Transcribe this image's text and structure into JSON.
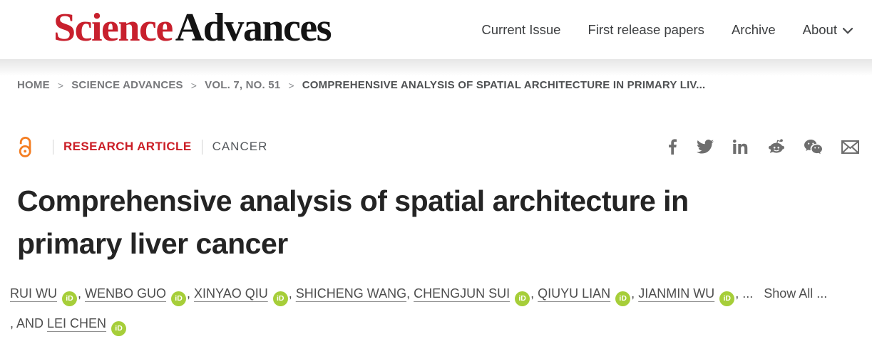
{
  "header": {
    "logo": {
      "science": "Science",
      "advances": "Advances"
    },
    "nav": {
      "items": [
        {
          "label": "Current Issue",
          "dropdown": false
        },
        {
          "label": "First release papers",
          "dropdown": false
        },
        {
          "label": "Archive",
          "dropdown": false
        },
        {
          "label": "About",
          "dropdown": true
        }
      ]
    }
  },
  "breadcrumb": {
    "separator": ">",
    "items": [
      "HOME",
      "SCIENCE ADVANCES",
      "VOL. 7, NO. 51"
    ],
    "current": "COMPREHENSIVE ANALYSIS OF SPATIAL ARCHITECTURE IN PRIMARY LIV..."
  },
  "article_meta": {
    "open_access_icon": "open-access-lock-icon",
    "type": "RESEARCH ARTICLE",
    "section": "CANCER"
  },
  "share": {
    "icons": [
      "facebook-icon",
      "twitter-icon",
      "linkedin-icon",
      "reddit-icon",
      "wechat-icon",
      "email-icon"
    ]
  },
  "title": {
    "full": "Comprehensive analysis of spatial architecture in primary liver cancer",
    "lines": [
      "Comprehensive analysis of spatial architecture in",
      "primary liver cancer"
    ]
  },
  "authors": {
    "orcid_label": "iD",
    "separator": ", ",
    "names": [
      {
        "name": "RUI WU",
        "orcid": true
      },
      {
        "name": "WENBO GUO",
        "orcid": true
      },
      {
        "name": "XINYAO QIU",
        "orcid": true
      },
      {
        "name": "SHICHENG WANG",
        "orcid": false
      },
      {
        "name": "CHENGJUN SUI",
        "orcid": true
      },
      {
        "name": "QIUYU LIAN",
        "orcid": true
      },
      {
        "name": "JIANMIN WU",
        "orcid": true
      }
    ],
    "truncation_ellipsis": ", ...",
    "show_all_label": "Show All ...",
    "last_author_prefix": ", AND ",
    "last_author": {
      "name": "LEI CHEN",
      "orcid": true
    }
  },
  "colors": {
    "logo_red": "#c8202d",
    "article_type_red": "#cb1f27",
    "open_access_orange": "#f47d21",
    "orcid_green": "#a6ce39"
  }
}
